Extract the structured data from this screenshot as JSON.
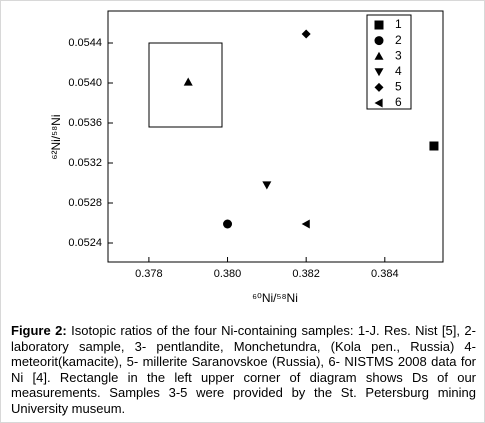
{
  "chart_data": {
    "type": "scatter",
    "x_label": "⁶⁰Ni/⁵⁸Ni",
    "y_label": "⁶²Ni/⁵⁸Ni",
    "xlim": [
      0.37696,
      0.38548
    ],
    "ylim": [
      0.05221,
      0.05472
    ],
    "xticks": [
      0.378,
      {
        "value": 0.38,
        "label": "0.380"
      },
      0.382,
      0.384
    ],
    "yticks": [
      {
        "value": 0.0524,
        "label": "0.0524"
      },
      0.0528,
      0.0532,
      0.0536,
      {
        "value": 0.054,
        "label": "0.0540"
      },
      0.0544
    ],
    "legend": "upper right",
    "series": [
      {
        "name": "1",
        "marker": "square",
        "color": "#000000",
        "x": [
          0.38525
        ],
        "values": [
          0.05337
        ]
      },
      {
        "name": "2",
        "marker": "circle",
        "color": "#000000",
        "x": [
          0.38
        ],
        "values": [
          0.05259
        ]
      },
      {
        "name": "3",
        "marker": "triangle-up",
        "color": "#000000",
        "x": [
          0.379
        ],
        "values": [
          0.05401
        ]
      },
      {
        "name": "4",
        "marker": "triangle-down",
        "color": "#000000",
        "x": [
          0.381
        ],
        "values": [
          0.05298
        ]
      },
      {
        "name": "5",
        "marker": "diamond",
        "color": "#000000",
        "x": [
          0.382
        ],
        "values": [
          0.05449
        ]
      },
      {
        "name": "6",
        "marker": "triangle-left",
        "color": "#000000",
        "x": [
          0.382
        ],
        "values": [
          0.05259
        ]
      }
    ]
  },
  "caption": {
    "label": "Figure 2:",
    "text": "Isotopic ratios of the four Ni-containing samples: 1-J. Res. Nist [5], 2-laboratory sample, 3- pentlandite, Monchetundra, (Kola pen., Russia) 4- meteorit(kamacite), 5- millerite Saranovskoe (Russia), 6- NISTMS 2008 data for Ni [4]. Rectangle in the left upper corner of diagram shows Ds of our measurements. Samples 3-5 were provided by the St. Petersburg mining University museum."
  }
}
